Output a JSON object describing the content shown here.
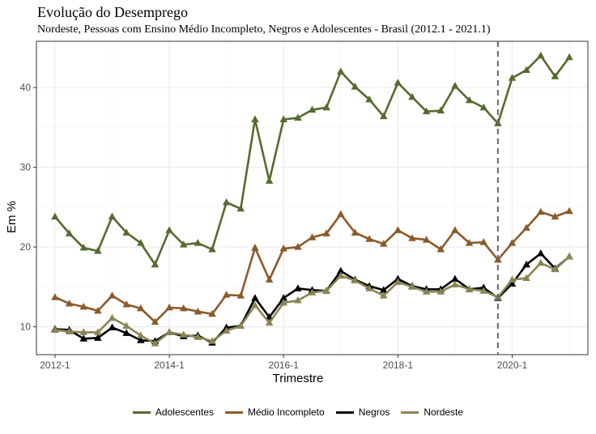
{
  "chart_data": {
    "type": "line",
    "title": "Evolução do Desemprego",
    "subtitle": "Nordeste, Pessoas com Ensino Médio Incompleto, Negros e Adolescentes - Brasil (2012.1 - 2021.1)",
    "xlabel": "Trimestre",
    "ylabel": "Em %",
    "x_ticks": [
      "2012-1",
      "2014-1",
      "2016-1",
      "2018-1",
      "2020-1"
    ],
    "y_ticks": [
      10,
      20,
      30,
      40
    ],
    "ylim": [
      6.5,
      45.8
    ],
    "xlim_quarters": [
      -1.3,
      37.3
    ],
    "vline_quarter": 31,
    "grid": true,
    "legend_position": "bottom",
    "series": [
      {
        "name": "Adolescentes",
        "color": "#556b2f",
        "values": [
          23.8,
          21.7,
          19.9,
          19.5,
          23.8,
          21.8,
          20.5,
          17.8,
          22.1,
          20.3,
          20.5,
          19.7,
          25.6,
          24.8,
          36.0,
          28.3,
          36.0,
          36.2,
          37.2,
          37.5,
          42.0,
          40.1,
          38.5,
          36.4,
          40.6,
          38.8,
          37.0,
          37.1,
          40.2,
          38.4,
          37.5,
          35.5,
          41.2,
          42.2,
          44.0,
          41.4,
          43.8
        ]
      },
      {
        "name": "Médio Incompleto",
        "color": "#8b5a2b",
        "values": [
          13.7,
          12.9,
          12.5,
          12.0,
          13.9,
          12.8,
          12.3,
          10.6,
          12.4,
          12.3,
          11.9,
          11.6,
          14.0,
          13.9,
          19.9,
          15.9,
          19.8,
          20.0,
          21.2,
          21.7,
          24.1,
          21.8,
          21.0,
          20.4,
          22.1,
          21.1,
          20.9,
          19.7,
          22.1,
          20.5,
          20.6,
          18.4,
          20.5,
          22.4,
          24.4,
          23.8,
          24.5
        ]
      },
      {
        "name": "Negros",
        "color": "#000000",
        "values": [
          9.7,
          9.6,
          8.5,
          8.6,
          9.9,
          9.2,
          8.3,
          8.2,
          9.3,
          8.8,
          8.9,
          8.0,
          9.9,
          10.1,
          13.6,
          11.2,
          13.6,
          14.8,
          14.6,
          14.5,
          17.0,
          15.9,
          15.1,
          14.6,
          16.0,
          15.1,
          14.7,
          14.7,
          16.0,
          14.7,
          14.9,
          13.6,
          15.4,
          17.8,
          19.2,
          17.3,
          18.8
        ]
      },
      {
        "name": "Nordeste",
        "color": "#8b8455",
        "values": [
          9.6,
          9.4,
          9.3,
          9.3,
          11.1,
          10.1,
          8.9,
          7.9,
          9.3,
          9.0,
          8.7,
          8.2,
          9.5,
          10.1,
          12.7,
          10.5,
          13.0,
          13.3,
          14.3,
          14.5,
          16.4,
          15.8,
          14.8,
          13.9,
          15.6,
          15.0,
          14.4,
          14.4,
          15.3,
          14.7,
          14.5,
          13.7,
          15.9,
          16.1,
          18.0,
          17.2,
          18.8
        ]
      }
    ]
  }
}
